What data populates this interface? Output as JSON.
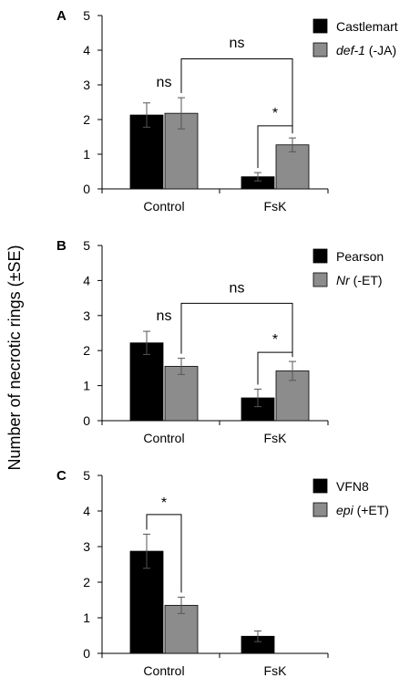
{
  "figure": {
    "y_axis_label": "Number of necrotic rings (±SE)"
  },
  "chart_data": [
    {
      "type": "bar",
      "panel": "A",
      "categories": [
        "Control",
        "FsK"
      ],
      "ylim": [
        0,
        5
      ],
      "yticks": [
        0,
        1,
        2,
        3,
        4,
        5
      ],
      "series": [
        {
          "name": "Castlemart",
          "italic": false,
          "values": [
            2.13,
            0.35
          ],
          "errors": [
            0.35,
            0.12
          ],
          "color": "#000000"
        },
        {
          "name": "def-1",
          "italic": true,
          "suffix": " (-JA)",
          "values": [
            2.18,
            1.27
          ],
          "errors": [
            0.45,
            0.2
          ],
          "color": "#8c8c8c"
        }
      ],
      "comparisons": [
        {
          "label": "ns",
          "type": "single",
          "x": [
            0,
            0
          ]
        },
        {
          "label": "ns",
          "type": "bracket",
          "from": [
            0,
            1
          ],
          "to": [
            1,
            1
          ],
          "level": 3.75,
          "label_level": 3.97
        },
        {
          "label": "*",
          "type": "bracket",
          "from": [
            1,
            0
          ],
          "to": [
            1,
            1
          ],
          "level": 1.82,
          "label_level": 1.95
        }
      ],
      "legend_position": "top-right"
    },
    {
      "type": "bar",
      "panel": "B",
      "categories": [
        "Control",
        "FsK"
      ],
      "ylim": [
        0,
        5
      ],
      "yticks": [
        0,
        1,
        2,
        3,
        4,
        5
      ],
      "series": [
        {
          "name": "Pearson",
          "italic": false,
          "values": [
            2.22,
            0.65
          ],
          "errors": [
            0.33,
            0.25
          ],
          "color": "#000000"
        },
        {
          "name": "Nr",
          "italic": true,
          "suffix": " (-ET)",
          "values": [
            1.55,
            1.42
          ],
          "errors": [
            0.23,
            0.27
          ],
          "color": "#8c8c8c"
        }
      ],
      "comparisons": [
        {
          "label": "ns",
          "type": "single",
          "x": [
            0,
            0
          ]
        },
        {
          "label": "ns",
          "type": "bracket",
          "from": [
            0,
            1
          ],
          "to": [
            1,
            1
          ],
          "level": 3.35,
          "label_level": 3.55
        },
        {
          "label": "*",
          "type": "bracket",
          "from": [
            1,
            0
          ],
          "to": [
            1,
            1
          ],
          "level": 1.95,
          "label_level": 2.08
        }
      ],
      "legend_position": "top-right"
    },
    {
      "type": "bar",
      "panel": "C",
      "categories": [
        "Control",
        "FsK"
      ],
      "ylim": [
        0,
        5
      ],
      "yticks": [
        0,
        1,
        2,
        3,
        4,
        5
      ],
      "series": [
        {
          "name": "VFN8",
          "italic": false,
          "values": [
            2.87,
            0.48
          ],
          "errors": [
            0.48,
            0.15
          ],
          "color": "#000000"
        },
        {
          "name": "epi",
          "italic": true,
          "suffix": " (+ET)",
          "values": [
            1.35,
            0
          ],
          "errors": [
            0.23,
            0
          ],
          "color": "#8c8c8c"
        }
      ],
      "comparisons": [
        {
          "label": "*",
          "type": "bracket",
          "from": [
            0,
            0
          ],
          "to": [
            0,
            1
          ],
          "level": 3.9,
          "label_level": 4.0
        }
      ],
      "legend_position": "top-right"
    }
  ]
}
